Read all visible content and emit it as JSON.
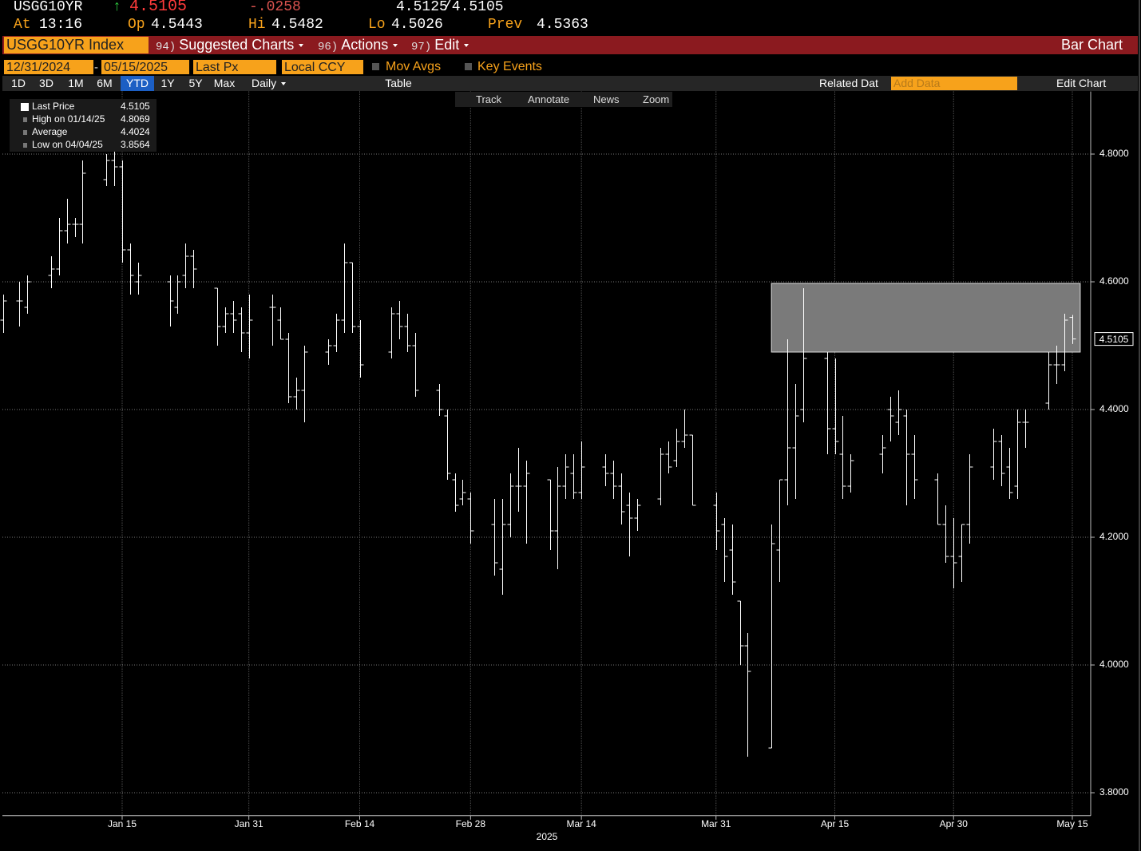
{
  "header": {
    "ticker": "USGG10YR",
    "direction": "↑",
    "last": "4.5105",
    "change": "-.0258",
    "bid": "4.5125",
    "ask": "/4.5105",
    "stats": [
      {
        "label": "At",
        "value": "13:16"
      },
      {
        "label": "Op",
        "value": "4.5443"
      },
      {
        "label": "Hi",
        "value": "4.5482"
      },
      {
        "label": "Lo",
        "value": "4.5026"
      },
      {
        "label": "Prev",
        "value": "4.5363"
      }
    ]
  },
  "menu_bar": {
    "security": "USGG10YR Index",
    "items": [
      {
        "number": "94)",
        "label": "Suggested Charts"
      },
      {
        "number": "96)",
        "label": "Actions"
      },
      {
        "number": "97)",
        "label": "Edit"
      }
    ],
    "view": "Bar Chart"
  },
  "controls": {
    "start_date": "12/31/2024",
    "separator": "-",
    "end_date": "05/15/2025",
    "field": "Last Px",
    "currency": "Local CCY",
    "toggles": [
      "Mov Avgs",
      "Key Events"
    ]
  },
  "toolbar": {
    "ranges": [
      "1D",
      "3D",
      "1M",
      "6M",
      "YTD",
      "1Y",
      "5Y",
      "Max"
    ],
    "selected_range": "YTD",
    "period": "Daily",
    "table": "Table",
    "related": "Related Dat",
    "add_data": "Add Data",
    "edit_chart": "Edit Chart"
  },
  "chart_tools": [
    "Track",
    "Annotate",
    "News",
    "Zoom"
  ],
  "chart_data": {
    "type": "ohlc",
    "color": "#ffffff",
    "x": [
      "2024-12-31",
      "2025-01-02",
      "2025-01-03",
      "2025-01-06",
      "2025-01-07",
      "2025-01-08",
      "2025-01-09",
      "2025-01-10",
      "2025-01-13",
      "2025-01-14",
      "2025-01-15",
      "2025-01-16",
      "2025-01-17",
      "2025-01-21",
      "2025-01-22",
      "2025-01-23",
      "2025-01-24",
      "2025-01-27",
      "2025-01-28",
      "2025-01-29",
      "2025-01-30",
      "2025-01-31",
      "2025-02-03",
      "2025-02-04",
      "2025-02-05",
      "2025-02-06",
      "2025-02-07",
      "2025-02-10",
      "2025-02-11",
      "2025-02-12",
      "2025-02-13",
      "2025-02-14",
      "2025-02-18",
      "2025-02-19",
      "2025-02-20",
      "2025-02-21",
      "2025-02-24",
      "2025-02-25",
      "2025-02-26",
      "2025-02-27",
      "2025-02-28",
      "2025-03-03",
      "2025-03-04",
      "2025-03-05",
      "2025-03-06",
      "2025-03-07",
      "2025-03-10",
      "2025-03-11",
      "2025-03-12",
      "2025-03-13",
      "2025-03-14",
      "2025-03-17",
      "2025-03-18",
      "2025-03-19",
      "2025-03-20",
      "2025-03-21",
      "2025-03-24",
      "2025-03-25",
      "2025-03-26",
      "2025-03-27",
      "2025-03-28",
      "2025-03-31",
      "2025-04-01",
      "2025-04-02",
      "2025-04-03",
      "2025-04-04",
      "2025-04-07",
      "2025-04-08",
      "2025-04-09",
      "2025-04-10",
      "2025-04-11",
      "2025-04-14",
      "2025-04-15",
      "2025-04-16",
      "2025-04-17",
      "2025-04-21",
      "2025-04-22",
      "2025-04-23",
      "2025-04-24",
      "2025-04-25",
      "2025-04-28",
      "2025-04-29",
      "2025-04-30",
      "2025-05-01",
      "2025-05-02",
      "2025-05-05",
      "2025-05-06",
      "2025-05-07",
      "2025-05-08",
      "2025-05-09",
      "2025-05-12",
      "2025-05-13",
      "2025-05-14",
      "2025-05-15"
    ],
    "open": [
      4.54,
      4.57,
      4.56,
      4.61,
      4.62,
      4.68,
      4.69,
      4.69,
      4.76,
      4.79,
      4.78,
      4.65,
      4.6,
      4.6,
      4.56,
      4.61,
      4.64,
      4.59,
      4.53,
      4.55,
      4.55,
      4.52,
      4.56,
      4.54,
      4.51,
      4.42,
      4.43,
      4.49,
      4.5,
      4.54,
      4.63,
      4.53,
      4.49,
      4.55,
      4.53,
      4.5,
      4.43,
      4.39,
      4.29,
      4.26,
      4.26,
      4.22,
      4.15,
      4.22,
      4.28,
      4.28,
      4.29,
      4.21,
      4.28,
      4.3,
      4.27,
      4.31,
      4.3,
      4.28,
      4.25,
      4.23,
      4.26,
      4.33,
      4.32,
      4.35,
      4.36,
      4.25,
      4.22,
      4.18,
      4.1,
      4.03,
      3.87,
      4.18,
      4.29,
      4.34,
      4.4,
      4.48,
      4.37,
      4.33,
      4.28,
      4.33,
      4.4,
      4.38,
      4.39,
      4.33,
      4.29,
      4.22,
      4.17,
      4.17,
      4.22,
      4.31,
      4.35,
      4.31,
      4.28,
      4.38,
      4.41,
      4.47,
      4.47,
      4.5443
    ],
    "high": [
      4.58,
      4.6,
      4.61,
      4.64,
      4.7,
      4.73,
      4.7,
      4.79,
      4.8,
      4.8069,
      4.79,
      4.66,
      4.63,
      4.61,
      4.61,
      4.66,
      4.65,
      4.59,
      4.56,
      4.57,
      4.56,
      4.58,
      4.58,
      4.56,
      4.52,
      4.45,
      4.5,
      4.51,
      4.55,
      4.66,
      4.63,
      4.54,
      4.56,
      4.57,
      4.55,
      4.52,
      4.44,
      4.4,
      4.3,
      4.29,
      4.27,
      4.26,
      4.26,
      4.3,
      4.34,
      4.32,
      4.29,
      4.31,
      4.33,
      4.33,
      4.35,
      4.33,
      4.32,
      4.3,
      4.27,
      4.26,
      4.34,
      4.35,
      4.37,
      4.4,
      4.36,
      4.27,
      4.23,
      4.22,
      4.1,
      4.05,
      4.22,
      4.29,
      4.51,
      4.44,
      4.59,
      4.49,
      4.48,
      4.39,
      4.33,
      4.36,
      4.42,
      4.43,
      4.4,
      4.36,
      4.3,
      4.25,
      4.23,
      4.22,
      4.33,
      4.37,
      4.36,
      4.34,
      4.4,
      4.4,
      4.49,
      4.5,
      4.55,
      4.5482
    ],
    "low": [
      4.52,
      4.53,
      4.55,
      4.59,
      4.61,
      4.66,
      4.67,
      4.66,
      4.75,
      4.75,
      4.63,
      4.58,
      4.58,
      4.53,
      4.55,
      4.59,
      4.59,
      4.5,
      4.52,
      4.52,
      4.49,
      4.48,
      4.5,
      4.51,
      4.41,
      4.4,
      4.38,
      4.47,
      4.49,
      4.52,
      4.52,
      4.45,
      4.48,
      4.51,
      4.49,
      4.42,
      4.39,
      4.29,
      4.24,
      4.25,
      4.19,
      4.14,
      4.11,
      4.2,
      4.24,
      4.19,
      4.18,
      4.15,
      4.26,
      4.26,
      4.26,
      4.28,
      4.26,
      4.22,
      4.17,
      4.21,
      4.25,
      4.3,
      4.31,
      4.34,
      4.25,
      4.18,
      4.13,
      4.11,
      4.0,
      3.8564,
      3.87,
      4.13,
      4.25,
      4.26,
      4.38,
      4.33,
      4.33,
      4.26,
      4.27,
      4.3,
      4.35,
      4.36,
      4.25,
      4.26,
      4.22,
      4.16,
      4.12,
      4.13,
      4.19,
      4.29,
      4.28,
      4.26,
      4.26,
      4.34,
      4.4,
      4.44,
      4.46,
      4.5026
    ],
    "close": [
      4.57,
      4.57,
      4.6,
      4.62,
      4.68,
      4.69,
      4.69,
      4.77,
      4.79,
      4.78,
      4.65,
      4.61,
      4.61,
      4.57,
      4.6,
      4.64,
      4.62,
      4.53,
      4.55,
      4.54,
      4.52,
      4.54,
      4.56,
      4.51,
      4.42,
      4.43,
      4.49,
      4.5,
      4.54,
      4.63,
      4.53,
      4.47,
      4.55,
      4.53,
      4.5,
      4.43,
      4.4,
      4.3,
      4.25,
      4.27,
      4.21,
      4.16,
      4.22,
      4.28,
      4.28,
      4.3,
      4.21,
      4.28,
      4.31,
      4.27,
      4.31,
      4.3,
      4.28,
      4.24,
      4.23,
      4.25,
      4.33,
      4.31,
      4.35,
      4.36,
      4.25,
      4.21,
      4.17,
      4.13,
      4.03,
      3.99,
      4.19,
      4.29,
      4.34,
      4.39,
      4.48,
      4.37,
      4.35,
      4.28,
      4.32,
      4.34,
      4.39,
      4.4,
      4.33,
      4.29,
      4.22,
      4.17,
      4.16,
      4.22,
      4.31,
      4.35,
      4.3,
      4.27,
      4.38,
      4.38,
      4.47,
      4.47,
      4.54,
      4.5105
    ],
    "ylim": [
      3.764,
      4.898
    ],
    "yticks": [
      {
        "value": 3.8,
        "label": "3.8000"
      },
      {
        "value": 4.0,
        "label": "4.0000"
      },
      {
        "value": 4.2,
        "label": "4.2000"
      },
      {
        "value": 4.4,
        "label": "4.4000"
      },
      {
        "value": 4.6,
        "label": "4.6000"
      },
      {
        "value": 4.8,
        "label": "4.8000"
      }
    ],
    "xticks": [
      {
        "value": "2025-01-15",
        "label": "Jan 15"
      },
      {
        "value": "2025-01-31",
        "label": "Jan 31"
      },
      {
        "value": "2025-02-14",
        "label": "Feb 14"
      },
      {
        "value": "2025-02-28",
        "label": "Feb 28"
      },
      {
        "value": "2025-03-14",
        "label": "Mar 14"
      },
      {
        "value": "2025-03-31",
        "label": "Mar 31"
      },
      {
        "value": "2025-04-15",
        "label": "Apr 15"
      },
      {
        "value": "2025-04-30",
        "label": "Apr 30"
      },
      {
        "value": "2025-05-15",
        "label": "May 15"
      }
    ],
    "xlabel": "2025",
    "grid": true,
    "shaded_region": {
      "x0": "2025-04-07",
      "x1": "2025-05-16",
      "y0": 4.49,
      "y1": 4.5975
    },
    "legend": [
      {
        "label": "Last Price",
        "value": 4.5105
      },
      {
        "label": "High on 01/14/25",
        "value": 4.8069
      },
      {
        "label": "Average",
        "value": 4.4024
      },
      {
        "label": "Low on 04/04/25",
        "value": 3.8564
      }
    ]
  }
}
